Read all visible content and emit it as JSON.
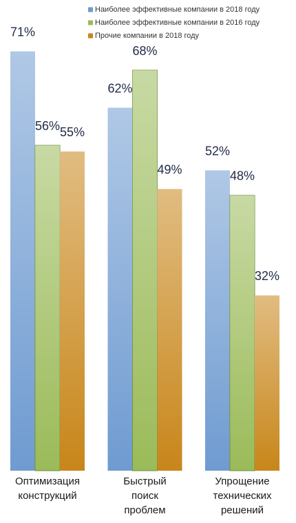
{
  "chart_data": {
    "type": "bar",
    "categories": [
      "Оптимизация конструкций",
      "Быстрый поиск проблем",
      "Упрощение технических решений"
    ],
    "series": [
      {
        "name": "Наиболее эффективные компании в 2018 году",
        "color": "#6f9bd1",
        "values": [
          71,
          62,
          52
        ],
        "value_labels": [
          "71%",
          "62%",
          "52%"
        ]
      },
      {
        "name": "Наиболее эффективные компании в 2016 году",
        "color": "#9bbb59",
        "values": [
          56,
          68,
          48
        ],
        "value_labels": [
          "56%",
          "68%",
          "48%"
        ]
      },
      {
        "name": "Прочие компании в 2018 году",
        "color": "#c8861a",
        "values": [
          55,
          49,
          32
        ],
        "value_labels": [
          "55%",
          "49%",
          "32%"
        ]
      }
    ],
    "ylim": [
      4,
      79
    ],
    "legend": "top-right"
  }
}
